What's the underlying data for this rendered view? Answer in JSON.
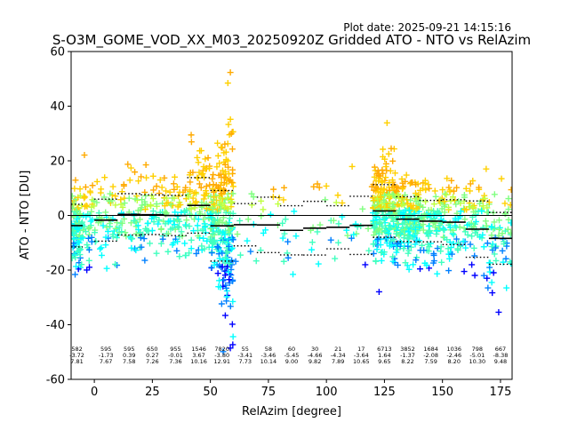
{
  "plot_date": "Plot date: 2025-09-21 14:15:16",
  "chart_data": {
    "type": "scatter",
    "title": "S-O3M_GOME_VOD_XX_M03_20250920Z Gridded ATO - NTO vs RelAzim",
    "xlabel": "RelAzim [degree]",
    "ylabel": "ATO - NTO [DU]",
    "xlim": [
      -10,
      180
    ],
    "ylim": [
      -60,
      60
    ],
    "xticks": [
      0,
      25,
      50,
      75,
      100,
      125,
      150,
      175
    ],
    "yticks": [
      -60,
      -40,
      -20,
      0,
      20,
      40,
      60
    ],
    "grid": false,
    "colors": {
      "zero_line": "#000000",
      "mean_line": "#000000",
      "std_line": "#000000",
      "point_palette": [
        "#0000ff",
        "#0080ff",
        "#00ffff",
        "#40ffbf",
        "#80ff80",
        "#bfff40",
        "#ffd000",
        "#ffaa00"
      ]
    },
    "bins": [
      {
        "x_start": -10,
        "x_end": -5,
        "count": "582",
        "mean": "-3.72",
        "std": "7.81"
      },
      {
        "x_start": 0,
        "x_end": 10,
        "count": "595",
        "mean": "-1.73",
        "std": "7.67"
      },
      {
        "x_start": 10,
        "x_end": 20,
        "count": "595",
        "mean": "0.39",
        "std": "7.58"
      },
      {
        "x_start": 20,
        "x_end": 30,
        "count": "650",
        "mean": "0.27",
        "std": "7.26"
      },
      {
        "x_start": 30,
        "x_end": 40,
        "count": "955",
        "mean": "-0.01",
        "std": "7.36"
      },
      {
        "x_start": 40,
        "x_end": 50,
        "count": "1546",
        "mean": "3.67",
        "std": "10.16"
      },
      {
        "x_start": 50,
        "x_end": 60,
        "count": "7820",
        "mean": "-3.80",
        "std": "12.91"
      },
      {
        "x_start": 60,
        "x_end": 70,
        "count": "55",
        "mean": "-3.41",
        "std": "7.73"
      },
      {
        "x_start": 70,
        "x_end": 80,
        "count": "58",
        "mean": "-3.46",
        "std": "10.14"
      },
      {
        "x_start": 80,
        "x_end": 90,
        "count": "60",
        "mean": "-5.45",
        "std": "9.00"
      },
      {
        "x_start": 90,
        "x_end": 100,
        "count": "30",
        "mean": "-4.66",
        "std": "9.82"
      },
      {
        "x_start": 100,
        "x_end": 110,
        "count": "21",
        "mean": "-4.34",
        "std": "7.89"
      },
      {
        "x_start": 110,
        "x_end": 120,
        "count": "17",
        "mean": "-3.64",
        "std": "10.65"
      },
      {
        "x_start": 120,
        "x_end": 130,
        "count": "6713",
        "mean": "1.64",
        "std": "9.65"
      },
      {
        "x_start": 130,
        "x_end": 140,
        "count": "3852",
        "mean": "-1.37",
        "std": "8.22"
      },
      {
        "x_start": 140,
        "x_end": 150,
        "count": "1684",
        "mean": "-2.08",
        "std": "7.59"
      },
      {
        "x_start": 150,
        "x_end": 160,
        "count": "1036",
        "mean": "-2.46",
        "std": "8.20"
      },
      {
        "x_start": 160,
        "x_end": 170,
        "count": "798",
        "mean": "-5.01",
        "std": "10.30"
      },
      {
        "x_start": 170,
        "x_end": 180,
        "count": "667",
        "mean": "-8.38",
        "std": "9.48"
      }
    ]
  }
}
